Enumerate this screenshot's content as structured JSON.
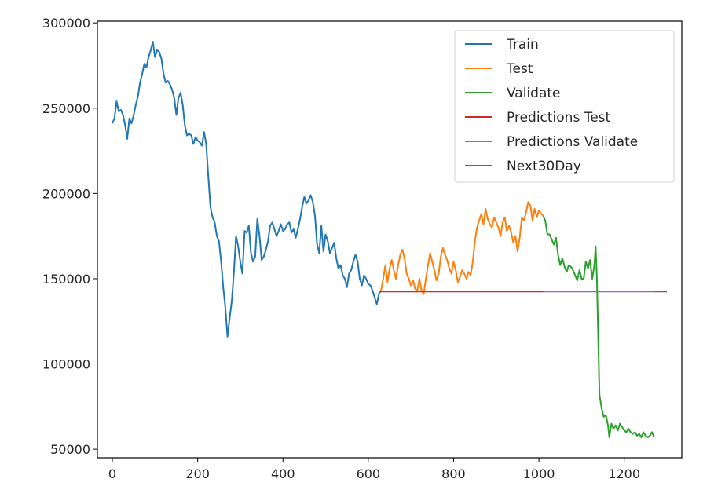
{
  "chart_data": {
    "type": "line",
    "title": "",
    "xlabel": "",
    "ylabel": "",
    "xlim": [
      -35,
      1335
    ],
    "ylim": [
      45000,
      301000
    ],
    "xticks": [
      0,
      200,
      400,
      600,
      800,
      1000,
      1200
    ],
    "yticks": [
      50000,
      100000,
      150000,
      200000,
      250000,
      300000
    ],
    "grid": false,
    "legend_position": "top-right",
    "series": [
      {
        "name": "Train",
        "color": "#1f77b4",
        "points": [
          [
            0,
            241000
          ],
          [
            5,
            244000
          ],
          [
            10,
            254000
          ],
          [
            15,
            248000
          ],
          [
            20,
            249000
          ],
          [
            25,
            246000
          ],
          [
            30,
            240000
          ],
          [
            35,
            232000
          ],
          [
            40,
            244000
          ],
          [
            45,
            241000
          ],
          [
            50,
            246000
          ],
          [
            55,
            252000
          ],
          [
            60,
            257000
          ],
          [
            65,
            265000
          ],
          [
            70,
            270000
          ],
          [
            75,
            276000
          ],
          [
            80,
            274000
          ],
          [
            85,
            280000
          ],
          [
            90,
            284000
          ],
          [
            95,
            289000
          ],
          [
            100,
            280000
          ],
          [
            105,
            284000
          ],
          [
            110,
            283000
          ],
          [
            115,
            279000
          ],
          [
            120,
            270000
          ],
          [
            125,
            265000
          ],
          [
            130,
            266000
          ],
          [
            135,
            264000
          ],
          [
            140,
            261000
          ],
          [
            145,
            256000
          ],
          [
            150,
            246000
          ],
          [
            155,
            256000
          ],
          [
            160,
            259000
          ],
          [
            165,
            252000
          ],
          [
            170,
            240000
          ],
          [
            175,
            234000
          ],
          [
            180,
            235000
          ],
          [
            185,
            234000
          ],
          [
            190,
            229000
          ],
          [
            195,
            233000
          ],
          [
            200,
            231000
          ],
          [
            205,
            230000
          ],
          [
            210,
            228000
          ],
          [
            215,
            236000
          ],
          [
            220,
            229000
          ],
          [
            225,
            210000
          ],
          [
            230,
            192000
          ],
          [
            235,
            186000
          ],
          [
            240,
            183000
          ],
          [
            245,
            175000
          ],
          [
            250,
            172000
          ],
          [
            255,
            160000
          ],
          [
            260,
            145000
          ],
          [
            265,
            133000
          ],
          [
            270,
            116000
          ],
          [
            275,
            127000
          ],
          [
            280,
            137000
          ],
          [
            285,
            154000
          ],
          [
            290,
            175000
          ],
          [
            295,
            169000
          ],
          [
            300,
            160000
          ],
          [
            305,
            153000
          ],
          [
            310,
            178000
          ],
          [
            315,
            177000
          ],
          [
            320,
            181000
          ],
          [
            325,
            165000
          ],
          [
            330,
            160000
          ],
          [
            335,
            163000
          ],
          [
            340,
            185000
          ],
          [
            345,
            175000
          ],
          [
            350,
            161000
          ],
          [
            355,
            163000
          ],
          [
            360,
            167000
          ],
          [
            365,
            172000
          ],
          [
            370,
            181000
          ],
          [
            375,
            183000
          ],
          [
            380,
            179000
          ],
          [
            385,
            175000
          ],
          [
            390,
            178000
          ],
          [
            395,
            182000
          ],
          [
            400,
            178000
          ],
          [
            405,
            179000
          ],
          [
            410,
            182000
          ],
          [
            415,
            183000
          ],
          [
            420,
            177000
          ],
          [
            425,
            179000
          ],
          [
            430,
            174000
          ],
          [
            435,
            179000
          ],
          [
            440,
            185000
          ],
          [
            445,
            192000
          ],
          [
            450,
            198000
          ],
          [
            455,
            194000
          ],
          [
            460,
            196000
          ],
          [
            465,
            199000
          ],
          [
            470,
            195000
          ],
          [
            475,
            187000
          ],
          [
            480,
            170000
          ],
          [
            485,
            165000
          ],
          [
            490,
            181000
          ],
          [
            495,
            166000
          ],
          [
            500,
            176000
          ],
          [
            505,
            172000
          ],
          [
            510,
            165000
          ],
          [
            515,
            168000
          ],
          [
            520,
            171000
          ],
          [
            525,
            162000
          ],
          [
            530,
            156000
          ],
          [
            535,
            158000
          ],
          [
            540,
            152000
          ],
          [
            545,
            150000
          ],
          [
            550,
            145000
          ],
          [
            555,
            153000
          ],
          [
            560,
            155000
          ],
          [
            565,
            160000
          ],
          [
            570,
            164000
          ],
          [
            575,
            160000
          ],
          [
            580,
            150000
          ],
          [
            585,
            146000
          ],
          [
            590,
            152000
          ],
          [
            595,
            150000
          ],
          [
            600,
            147000
          ],
          [
            605,
            146000
          ],
          [
            610,
            143000
          ],
          [
            615,
            139000
          ],
          [
            620,
            135000
          ],
          [
            625,
            141000
          ],
          [
            630,
            143000
          ]
        ]
      },
      {
        "name": "Test",
        "color": "#ff7f0e",
        "points": [
          [
            630,
            143000
          ],
          [
            635,
            150000
          ],
          [
            640,
            158000
          ],
          [
            645,
            148000
          ],
          [
            650,
            156000
          ],
          [
            655,
            161000
          ],
          [
            660,
            155000
          ],
          [
            665,
            150000
          ],
          [
            670,
            158000
          ],
          [
            675,
            164000
          ],
          [
            680,
            167000
          ],
          [
            685,
            162000
          ],
          [
            690,
            153000
          ],
          [
            695,
            150000
          ],
          [
            700,
            146000
          ],
          [
            705,
            149000
          ],
          [
            710,
            144000
          ],
          [
            715,
            143000
          ],
          [
            720,
            150000
          ],
          [
            725,
            143000
          ],
          [
            730,
            141000
          ],
          [
            735,
            150000
          ],
          [
            740,
            158000
          ],
          [
            745,
            165000
          ],
          [
            750,
            160000
          ],
          [
            755,
            155000
          ],
          [
            760,
            149000
          ],
          [
            765,
            153000
          ],
          [
            770,
            163000
          ],
          [
            775,
            168000
          ],
          [
            780,
            164000
          ],
          [
            785,
            161000
          ],
          [
            790,
            156000
          ],
          [
            795,
            153000
          ],
          [
            800,
            160000
          ],
          [
            805,
            155000
          ],
          [
            810,
            148000
          ],
          [
            815,
            151000
          ],
          [
            820,
            155000
          ],
          [
            825,
            153000
          ],
          [
            830,
            150000
          ],
          [
            835,
            154000
          ],
          [
            840,
            152000
          ],
          [
            845,
            160000
          ],
          [
            850,
            172000
          ],
          [
            855,
            180000
          ],
          [
            860,
            184000
          ],
          [
            865,
            188000
          ],
          [
            870,
            182000
          ],
          [
            875,
            191000
          ],
          [
            880,
            185000
          ],
          [
            885,
            182000
          ],
          [
            890,
            180000
          ],
          [
            895,
            186000
          ],
          [
            900,
            183000
          ],
          [
            905,
            180000
          ],
          [
            910,
            175000
          ],
          [
            915,
            183000
          ],
          [
            920,
            186000
          ],
          [
            925,
            178000
          ],
          [
            930,
            181000
          ],
          [
            935,
            177000
          ],
          [
            940,
            171000
          ],
          [
            945,
            175000
          ],
          [
            950,
            166000
          ],
          [
            955,
            174000
          ],
          [
            960,
            186000
          ],
          [
            965,
            184000
          ],
          [
            970,
            189000
          ],
          [
            975,
            195000
          ],
          [
            980,
            193000
          ],
          [
            985,
            184000
          ],
          [
            990,
            191000
          ],
          [
            995,
            186000
          ],
          [
            1000,
            190000
          ],
          [
            1005,
            188000
          ],
          [
            1010,
            187000
          ]
        ]
      },
      {
        "name": "Validate",
        "color": "#2ca02c",
        "points": [
          [
            1010,
            187000
          ],
          [
            1015,
            184000
          ],
          [
            1020,
            176000
          ],
          [
            1025,
            176000
          ],
          [
            1030,
            173000
          ],
          [
            1035,
            170000
          ],
          [
            1040,
            174000
          ],
          [
            1045,
            164000
          ],
          [
            1050,
            158000
          ],
          [
            1055,
            162000
          ],
          [
            1060,
            157000
          ],
          [
            1065,
            154000
          ],
          [
            1070,
            158000
          ],
          [
            1075,
            157000
          ],
          [
            1080,
            155000
          ],
          [
            1085,
            152000
          ],
          [
            1090,
            149000
          ],
          [
            1095,
            155000
          ],
          [
            1100,
            150000
          ],
          [
            1105,
            150000
          ],
          [
            1110,
            160000
          ],
          [
            1115,
            156000
          ],
          [
            1120,
            161000
          ],
          [
            1125,
            150000
          ],
          [
            1130,
            158000
          ],
          [
            1133,
            169000
          ],
          [
            1136,
            150000
          ],
          [
            1139,
            115000
          ],
          [
            1142,
            82000
          ],
          [
            1147,
            74000
          ],
          [
            1152,
            69000
          ],
          [
            1157,
            70000
          ],
          [
            1162,
            64000
          ],
          [
            1165,
            57000
          ],
          [
            1170,
            65000
          ],
          [
            1175,
            62000
          ],
          [
            1180,
            64000
          ],
          [
            1185,
            61000
          ],
          [
            1190,
            65000
          ],
          [
            1195,
            63000
          ],
          [
            1200,
            61000
          ],
          [
            1205,
            60000
          ],
          [
            1210,
            62000
          ],
          [
            1215,
            60000
          ],
          [
            1220,
            59000
          ],
          [
            1225,
            60000
          ],
          [
            1230,
            58000
          ],
          [
            1235,
            59000
          ],
          [
            1240,
            57000
          ],
          [
            1245,
            60000
          ],
          [
            1250,
            58000
          ],
          [
            1255,
            57000
          ],
          [
            1260,
            58000
          ],
          [
            1265,
            60000
          ],
          [
            1270,
            57000
          ]
        ]
      },
      {
        "name": "Predictions Test",
        "color": "#d62728",
        "points": [
          [
            630,
            142500
          ],
          [
            1010,
            142500
          ]
        ]
      },
      {
        "name": "Predictions Validate",
        "color": "#9467bd",
        "points": [
          [
            1010,
            142500
          ],
          [
            1270,
            142500
          ]
        ]
      },
      {
        "name": "Next30Day",
        "color": "#8c564b",
        "points": [
          [
            1270,
            142500
          ],
          [
            1300,
            142500
          ]
        ]
      }
    ]
  }
}
